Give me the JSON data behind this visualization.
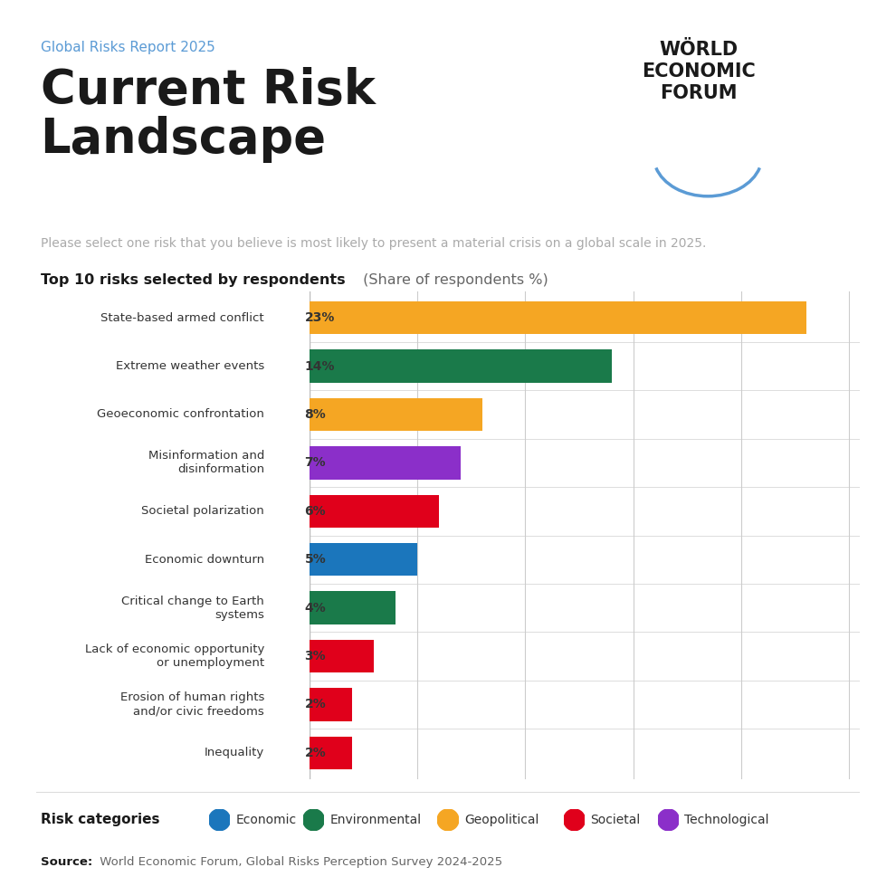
{
  "subtitle": "Global Risks Report 2025",
  "title": "Current Risk\nLandscape",
  "description": "Please select one risk that you believe is most likely to present a material crisis on a global scale in 2025.",
  "section_title": "Top 10 risks selected by respondents",
  "section_subtitle": " (Share of respondents %)",
  "categories": [
    "State-based armed conflict",
    "Extreme weather events",
    "Geoeconomic confrontation",
    "Misinformation and\ndisinformation",
    "Societal polarization",
    "Economic downturn",
    "Critical change to Earth\nsystems",
    "Lack of economic opportunity\nor unemployment",
    "Erosion of human rights\nand/or civic freedoms",
    "Inequality"
  ],
  "values": [
    23,
    14,
    8,
    7,
    6,
    5,
    4,
    3,
    2,
    2
  ],
  "colors": [
    "#F5A623",
    "#1A7A4A",
    "#F5A623",
    "#8B2FC9",
    "#E0001B",
    "#1B76BC",
    "#1A7A4A",
    "#E0001B",
    "#E0001B",
    "#E0001B"
  ],
  "legend_categories": [
    "Economic",
    "Environmental",
    "Geopolitical",
    "Societal",
    "Technological"
  ],
  "legend_colors": [
    "#1B76BC",
    "#1A7A4A",
    "#F5A623",
    "#E0001B",
    "#8B2FC9"
  ],
  "source_bold": "Source:",
  "source_normal": " World Economic Forum, Global Risks Perception Survey 2024-2025",
  "subtitle_color": "#5B9BD5",
  "title_color": "#1A1A1A",
  "description_color": "#AAAAAA",
  "background_color": "#FFFFFF",
  "xlim": [
    0,
    25
  ],
  "grid_lines": [
    5,
    10,
    15,
    20,
    25
  ]
}
